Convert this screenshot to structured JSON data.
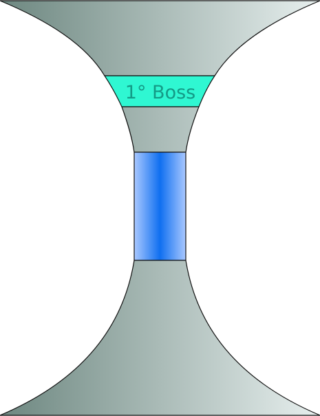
{
  "diagram": {
    "boss_label": "1° Boss",
    "colors": {
      "body_dark": "#6d8780",
      "body_light": "#e7efee",
      "boss_band": "#2ff7d2",
      "boss_text": "#149a86",
      "channel_dark": "#0f6ff0",
      "channel_light": "#a9c8ff",
      "stroke": "#111111"
    }
  }
}
